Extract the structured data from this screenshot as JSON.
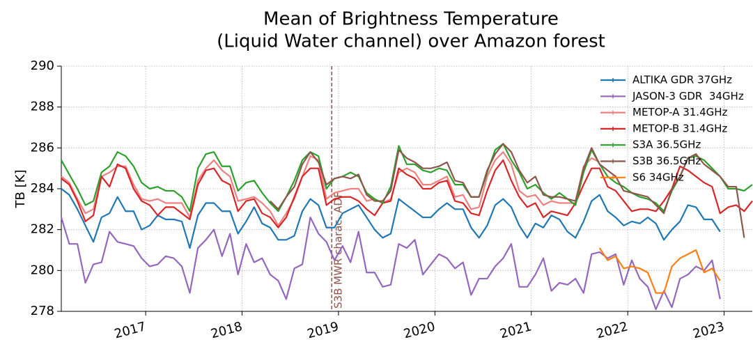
{
  "chart_data": {
    "type": "line",
    "title": [
      "Mean of Brightness Temperature",
      "(Liquid Water channel) over Amazon forest"
    ],
    "ylabel": "TB [K]",
    "xlim": [
      2016.125,
      2023.292
    ],
    "xticks": [
      2017,
      2018,
      2019,
      2020,
      2021,
      2022,
      2023
    ],
    "ylim": [
      278,
      290
    ],
    "yticks": [
      278,
      280,
      282,
      284,
      286,
      288,
      290
    ],
    "grid": true,
    "legend": "upper right",
    "annotations": [
      {
        "x": 2018.93,
        "text": "S3B MWR charac. ADF",
        "color": "#8c564b"
      }
    ],
    "x": [
      2016.125,
      2016.208,
      2016.292,
      2016.375,
      2016.458,
      2016.542,
      2016.625,
      2016.708,
      2016.792,
      2016.875,
      2016.958,
      2017.042,
      2017.125,
      2017.208,
      2017.292,
      2017.375,
      2017.458,
      2017.542,
      2017.625,
      2017.708,
      2017.792,
      2017.875,
      2017.958,
      2018.042,
      2018.125,
      2018.208,
      2018.292,
      2018.375,
      2018.458,
      2018.542,
      2018.625,
      2018.708,
      2018.792,
      2018.875,
      2018.958,
      2019.042,
      2019.125,
      2019.208,
      2019.292,
      2019.375,
      2019.458,
      2019.542,
      2019.625,
      2019.708,
      2019.792,
      2019.875,
      2019.958,
      2020.042,
      2020.125,
      2020.208,
      2020.292,
      2020.375,
      2020.458,
      2020.542,
      2020.625,
      2020.708,
      2020.792,
      2020.875,
      2020.958,
      2021.042,
      2021.125,
      2021.208,
      2021.292,
      2021.375,
      2021.458,
      2021.542,
      2021.625,
      2021.708,
      2021.792,
      2021.875,
      2021.958,
      2022.042,
      2022.125,
      2022.208,
      2022.292,
      2022.375,
      2022.458,
      2022.542,
      2022.625,
      2022.708,
      2022.792,
      2022.875,
      2022.958,
      2023.042,
      2023.125,
      2023.208,
      2023.292
    ],
    "series": [
      {
        "name": "ALTIKA GDR 37GHz",
        "color": "#1f77b4",
        "values": [
          284.0,
          283.7,
          283.0,
          282.2,
          281.4,
          282.6,
          282.8,
          283.6,
          282.9,
          282.9,
          282.0,
          282.2,
          282.7,
          282.5,
          282.5,
          282.4,
          281.1,
          282.7,
          283.3,
          283.3,
          282.9,
          282.9,
          281.8,
          282.4,
          283.1,
          282.3,
          282.1,
          281.5,
          281.5,
          281.7,
          282.9,
          283.5,
          283.2,
          282.1,
          282.1,
          282.8,
          283.0,
          283.2,
          282.6,
          282.0,
          281.6,
          281.8,
          283.5,
          283.2,
          282.9,
          282.6,
          282.6,
          283.0,
          283.3,
          283.0,
          283.0,
          282.1,
          281.6,
          282.2,
          283.2,
          283.5,
          283.1,
          282.2,
          281.6,
          282.3,
          282.1,
          282.7,
          282.5,
          281.9,
          281.6,
          282.4,
          283.4,
          283.7,
          282.9,
          282.6,
          282.2,
          282.4,
          282.3,
          282.6,
          282.3,
          281.5,
          282.0,
          282.4,
          283.2,
          283.1,
          282.5,
          282.5,
          281.9,
          null,
          null,
          null,
          null
        ]
      },
      {
        "name": "JASON-3 GDR  34GHz",
        "color": "#9467bd",
        "values": [
          282.6,
          281.3,
          281.3,
          279.4,
          280.3,
          280.4,
          281.9,
          281.4,
          281.3,
          281.2,
          280.6,
          280.2,
          280.3,
          280.7,
          280.6,
          280.2,
          278.9,
          281.1,
          281.5,
          282.0,
          280.7,
          281.8,
          279.8,
          281.3,
          280.4,
          280.6,
          279.8,
          279.5,
          278.6,
          280.1,
          280.3,
          282.6,
          281.8,
          281.4,
          280.5,
          281.2,
          280.4,
          281.9,
          279.9,
          279.9,
          279.2,
          279.3,
          281.3,
          281.1,
          281.5,
          279.8,
          280.3,
          280.8,
          280.6,
          280.1,
          280.4,
          278.8,
          279.6,
          279.6,
          280.2,
          280.6,
          281.3,
          279.2,
          279.2,
          279.8,
          280.6,
          279.0,
          279.4,
          279.3,
          279.6,
          278.9,
          280.8,
          280.9,
          280.6,
          280.8,
          279.3,
          280.5,
          279.6,
          279.2,
          278.1,
          279.0,
          278.2,
          279.6,
          279.8,
          280.2,
          280.0,
          280.5,
          278.6,
          null,
          null,
          null,
          null
        ]
      },
      {
        "name": "METOP-A 31.4GHz",
        "color": "#f08080",
        "values": [
          284.6,
          284.3,
          283.5,
          282.8,
          283.0,
          284.6,
          284.8,
          285.1,
          285.1,
          284.2,
          283.5,
          283.4,
          283.5,
          283.3,
          283.3,
          283.3,
          282.6,
          284.4,
          285.0,
          285.4,
          284.9,
          284.6,
          283.4,
          283.5,
          283.6,
          283.3,
          282.9,
          282.2,
          282.8,
          283.5,
          284.6,
          285.6,
          285.4,
          283.5,
          283.8,
          283.9,
          284.0,
          284.0,
          283.4,
          283.5,
          283.3,
          283.5,
          284.8,
          285.0,
          284.8,
          284.2,
          284.2,
          284.4,
          284.6,
          283.6,
          283.7,
          283.0,
          283.1,
          284.6,
          285.4,
          285.8,
          285.2,
          283.9,
          283.6,
          283.7,
          283.2,
          283.4,
          283.3,
          283.3,
          283.3,
          285.1,
          285.5,
          285.3,
          null,
          null,
          null,
          null,
          null,
          null,
          null,
          null,
          null,
          null,
          null,
          null,
          null,
          null,
          null,
          null,
          null,
          null,
          null
        ]
      },
      {
        "name": "METOP-B 31.4GHz",
        "color": "#d62728",
        "values": [
          284.5,
          284.2,
          283.4,
          282.4,
          282.7,
          284.6,
          284.1,
          285.2,
          285.0,
          284.0,
          283.4,
          283.2,
          282.7,
          283.1,
          283.1,
          282.8,
          282.5,
          284.2,
          284.9,
          285.0,
          284.4,
          284.2,
          282.9,
          283.4,
          283.5,
          282.8,
          282.6,
          282.1,
          282.6,
          283.6,
          284.6,
          285.0,
          285.0,
          283.2,
          283.5,
          283.6,
          283.6,
          283.4,
          283.0,
          282.7,
          283.3,
          283.4,
          285.0,
          284.7,
          284.5,
          284.0,
          284.0,
          284.3,
          284.4,
          283.4,
          283.3,
          282.8,
          282.7,
          283.9,
          284.9,
          285.4,
          284.4,
          283.6,
          283.1,
          283.3,
          282.6,
          282.9,
          282.8,
          282.7,
          283.3,
          284.2,
          285.0,
          285.0,
          284.1,
          283.9,
          283.4,
          282.9,
          283.0,
          283.0,
          282.9,
          283.4,
          284.0,
          285.1,
          284.9,
          284.6,
          284.3,
          284.1,
          282.8,
          283.1,
          283.2,
          282.9,
          283.4
        ]
      },
      {
        "name": "S3A 36.5GHz",
        "color": "#2ca02c",
        "values": [
          285.4,
          284.7,
          284.0,
          283.2,
          283.4,
          284.8,
          285.1,
          285.8,
          285.6,
          285.1,
          284.3,
          284.0,
          284.1,
          283.9,
          283.9,
          283.6,
          282.9,
          285.0,
          285.7,
          285.8,
          285.1,
          285.1,
          283.9,
          284.3,
          284.4,
          283.8,
          283.3,
          282.9,
          283.6,
          284.4,
          285.4,
          285.8,
          285.6,
          284.0,
          284.5,
          284.6,
          284.8,
          284.6,
          283.8,
          283.5,
          283.3,
          284.1,
          286.1,
          285.2,
          285.2,
          284.9,
          284.8,
          285.0,
          284.9,
          284.2,
          284.2,
          283.6,
          283.6,
          284.8,
          285.9,
          286.2,
          285.4,
          284.8,
          284.0,
          284.2,
          283.8,
          283.5,
          283.8,
          283.5,
          283.2,
          284.8,
          285.9,
          285.2,
          284.6,
          284.3,
          284.1,
          283.8,
          283.6,
          283.5,
          283.3,
          282.9,
          283.9,
          284.6,
          285.5,
          285.6,
          285.4,
          285.0,
          284.6,
          284.0,
          284.0,
          283.9,
          284.2
        ]
      },
      {
        "name": "S3B 36.5GHz",
        "color": "#8c564b",
        "values": [
          null,
          null,
          null,
          null,
          null,
          null,
          null,
          null,
          null,
          null,
          null,
          null,
          null,
          null,
          null,
          null,
          null,
          null,
          null,
          null,
          null,
          null,
          null,
          null,
          null,
          null,
          283.4,
          283.0,
          283.6,
          284.1,
          285.2,
          285.8,
          285.3,
          284.2,
          284.5,
          284.6,
          284.5,
          284.7,
          283.7,
          283.4,
          283.4,
          283.9,
          285.9,
          285.5,
          285.3,
          285.0,
          285.0,
          285.1,
          285.3,
          284.4,
          284.3,
          283.6,
          283.6,
          284.9,
          285.7,
          286.2,
          285.8,
          284.9,
          284.3,
          284.6,
          283.7,
          283.6,
          283.6,
          283.5,
          283.4,
          285.0,
          286.0,
          285.2,
          284.9,
          284.6,
          283.9,
          283.8,
          283.7,
          283.6,
          283.2,
          282.8,
          284.0,
          284.6,
          285.5,
          285.7,
          285.2,
          284.9,
          284.6,
          284.1,
          284.1,
          281.6,
          null
        ]
      },
      {
        "name": "S6 34GHz",
        "color": "#ff7f0e",
        "values": [
          null,
          null,
          null,
          null,
          null,
          null,
          null,
          null,
          null,
          null,
          null,
          null,
          null,
          null,
          null,
          null,
          null,
          null,
          null,
          null,
          null,
          null,
          null,
          null,
          null,
          null,
          null,
          null,
          null,
          null,
          null,
          null,
          null,
          null,
          null,
          null,
          null,
          null,
          null,
          null,
          null,
          null,
          null,
          null,
          null,
          null,
          null,
          null,
          null,
          null,
          null,
          null,
          null,
          null,
          null,
          null,
          null,
          null,
          null,
          null,
          null,
          null,
          null,
          null,
          null,
          null,
          null,
          281.1,
          280.5,
          280.7,
          280.1,
          280.2,
          280.1,
          279.9,
          278.9,
          278.9,
          280.2,
          280.6,
          280.8,
          281.0,
          279.9,
          280.1,
          279.5,
          null,
          null,
          null,
          null
        ]
      }
    ]
  }
}
